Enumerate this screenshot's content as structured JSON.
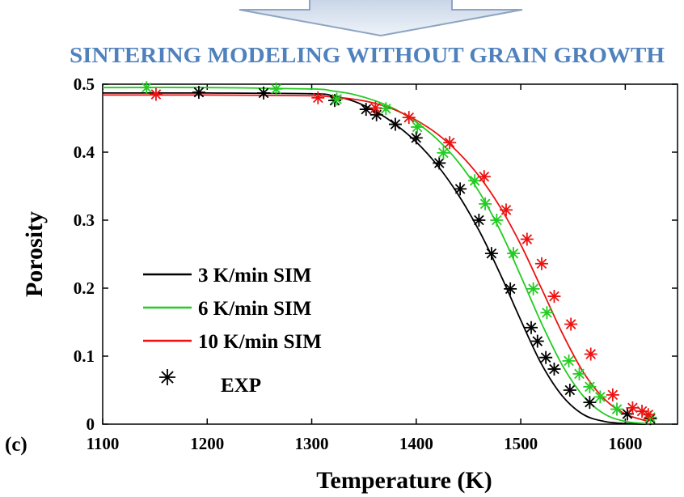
{
  "header": {
    "title": "SINTERING MODELING WITHOUT GRAIN GROWTH",
    "title_color": "#4f81bd"
  },
  "panel_label": "(c)",
  "chart_data": {
    "type": "line",
    "title": "",
    "xlabel": "Temperature (K)",
    "ylabel": "Porosity",
    "xlim": [
      1100,
      1650
    ],
    "ylim": [
      0,
      0.5
    ],
    "xticks": [
      1100,
      1200,
      1300,
      1400,
      1500,
      1600
    ],
    "yticks": [
      0,
      0.1,
      0.2,
      0.3,
      0.4,
      0.5
    ],
    "grid": false,
    "legend_position": "lower-left",
    "series": [
      {
        "name": "3 K/min SIM",
        "color": "#000000",
        "x": [
          1100,
          1200,
          1300,
          1320,
          1340,
          1360,
          1380,
          1400,
          1420,
          1440,
          1460,
          1480,
          1500,
          1520,
          1540,
          1560,
          1580,
          1600,
          1620
        ],
        "y": [
          0.487,
          0.487,
          0.486,
          0.483,
          0.475,
          0.461,
          0.441,
          0.415,
          0.381,
          0.338,
          0.285,
          0.222,
          0.153,
          0.088,
          0.041,
          0.014,
          0.004,
          0.001,
          0.0
        ]
      },
      {
        "name": "6 K/min SIM",
        "color": "#22cc22",
        "x": [
          1100,
          1200,
          1300,
          1320,
          1340,
          1360,
          1380,
          1400,
          1420,
          1440,
          1460,
          1480,
          1500,
          1520,
          1540,
          1560,
          1580,
          1600,
          1620
        ],
        "y": [
          0.495,
          0.495,
          0.493,
          0.49,
          0.485,
          0.476,
          0.463,
          0.444,
          0.419,
          0.386,
          0.342,
          0.286,
          0.218,
          0.148,
          0.086,
          0.041,
          0.015,
          0.004,
          0.001
        ]
      },
      {
        "name": "10 K/min SIM",
        "color": "#ee1111",
        "x": [
          1100,
          1200,
          1300,
          1320,
          1340,
          1360,
          1380,
          1400,
          1420,
          1440,
          1460,
          1480,
          1500,
          1520,
          1540,
          1560,
          1580,
          1600,
          1620
        ],
        "y": [
          0.484,
          0.484,
          0.483,
          0.481,
          0.478,
          0.472,
          0.462,
          0.447,
          0.427,
          0.4,
          0.365,
          0.32,
          0.264,
          0.199,
          0.133,
          0.076,
          0.037,
          0.015,
          0.005
        ]
      }
    ],
    "experimental_series": [
      {
        "name": "3 K/min EXP",
        "color": "#000000",
        "x": [
          1192,
          1254,
          1322,
          1352,
          1362,
          1380,
          1400,
          1422,
          1442,
          1460,
          1472,
          1490,
          1510,
          1516,
          1524,
          1532,
          1547,
          1566,
          1602,
          1624
        ],
        "y": [
          0.488,
          0.487,
          0.476,
          0.463,
          0.455,
          0.441,
          0.421,
          0.384,
          0.346,
          0.3,
          0.251,
          0.199,
          0.142,
          0.122,
          0.098,
          0.081,
          0.05,
          0.032,
          0.015,
          0.008
        ]
      },
      {
        "name": "6 K/min EXP",
        "color": "#22cc22",
        "x": [
          1142,
          1266,
          1324,
          1371,
          1401,
          1426,
          1456,
          1466,
          1477,
          1493,
          1512,
          1525,
          1546,
          1556,
          1566,
          1576,
          1592,
          1624
        ],
        "y": [
          0.495,
          0.493,
          0.478,
          0.464,
          0.437,
          0.399,
          0.358,
          0.324,
          0.3,
          0.251,
          0.199,
          0.164,
          0.093,
          0.074,
          0.055,
          0.04,
          0.022,
          0.01
        ]
      },
      {
        "name": "10 K/min EXP",
        "color": "#ee1111",
        "x": [
          1151,
          1306,
          1361,
          1393,
          1432,
          1465,
          1486,
          1506,
          1520,
          1532,
          1548,
          1567,
          1588,
          1607,
          1616,
          1622
        ],
        "y": [
          0.485,
          0.48,
          0.465,
          0.451,
          0.414,
          0.364,
          0.315,
          0.272,
          0.236,
          0.188,
          0.147,
          0.103,
          0.043,
          0.024,
          0.019,
          0.014
        ]
      }
    ],
    "legend": [
      {
        "label": "3 K/min SIM",
        "kind": "line",
        "color": "#000000"
      },
      {
        "label": "6 K/min SIM",
        "kind": "line",
        "color": "#22cc22"
      },
      {
        "label": "10 K/min SIM",
        "kind": "line",
        "color": "#ee1111"
      },
      {
        "label": "EXP",
        "kind": "marker",
        "color": "#000000"
      }
    ]
  }
}
